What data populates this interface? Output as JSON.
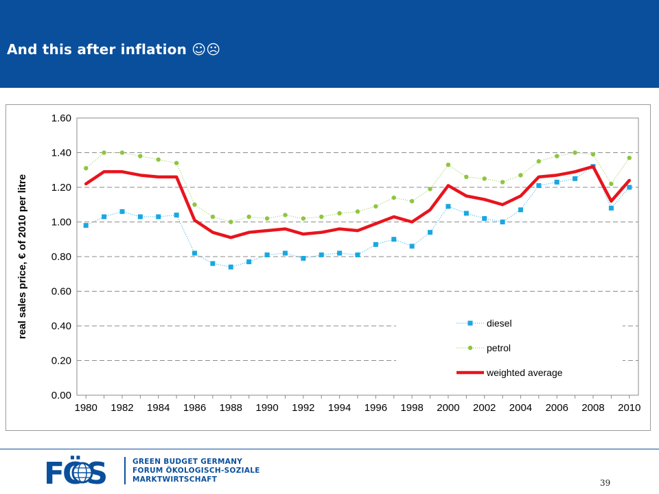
{
  "slide": {
    "title": "And this after inflation",
    "emoticons": "☺☹",
    "page_number": "39"
  },
  "footer": {
    "logo_text": "FÖS",
    "org_lines": [
      "GREEN BUDGET GERMANY",
      "FORUM ÖKOLOGISCH-SOZIALE",
      "MARKTWIRTSCHAFT"
    ],
    "colors": {
      "brand_blue": "#0a4f9c",
      "logo_gray": "#cfd6df"
    }
  },
  "chart_data": {
    "type": "line",
    "ylabel": "real sales price, € of 2010 per litre",
    "xlabel": "",
    "ylim": [
      0,
      1.6
    ],
    "yticks": [
      "0.00",
      "0.20",
      "0.40",
      "0.60",
      "0.80",
      "1.00",
      "1.20",
      "1.40",
      "1.60"
    ],
    "xticks": [
      "1980",
      "1982",
      "1984",
      "1986",
      "1988",
      "1990",
      "1992",
      "1994",
      "1996",
      "1998",
      "2000",
      "2002",
      "2004",
      "2006",
      "2008",
      "2010"
    ],
    "x": [
      1980,
      1981,
      1982,
      1983,
      1984,
      1985,
      1986,
      1987,
      1988,
      1989,
      1990,
      1991,
      1992,
      1993,
      1994,
      1995,
      1996,
      1997,
      1998,
      1999,
      2000,
      2001,
      2002,
      2003,
      2004,
      2005,
      2006,
      2007,
      2008,
      2009,
      2010
    ],
    "grid": "horizontal dashed",
    "legend_position": "bottom-right",
    "series": [
      {
        "name": "diesel",
        "color": "#1aa7e0",
        "style": "dotted with square markers",
        "values": [
          0.98,
          1.03,
          1.06,
          1.03,
          1.03,
          1.04,
          0.82,
          0.76,
          0.74,
          0.77,
          0.81,
          0.82,
          0.79,
          0.81,
          0.82,
          0.81,
          0.87,
          0.9,
          0.86,
          0.94,
          1.09,
          1.05,
          1.02,
          1.0,
          1.07,
          1.21,
          1.23,
          1.25,
          1.32,
          1.08,
          1.2
        ]
      },
      {
        "name": "petrol",
        "color": "#8dc63f",
        "style": "dotted with round markers",
        "values": [
          1.31,
          1.4,
          1.4,
          1.38,
          1.36,
          1.34,
          1.1,
          1.03,
          1.0,
          1.03,
          1.02,
          1.04,
          1.02,
          1.03,
          1.05,
          1.06,
          1.09,
          1.14,
          1.12,
          1.19,
          1.33,
          1.26,
          1.25,
          1.23,
          1.27,
          1.35,
          1.38,
          1.4,
          1.39,
          1.22,
          1.37
        ]
      },
      {
        "name": "weighted average",
        "color": "#e8141d",
        "style": "thick solid line",
        "values": [
          1.22,
          1.29,
          1.29,
          1.27,
          1.26,
          1.26,
          1.01,
          0.94,
          0.91,
          0.94,
          0.95,
          0.96,
          0.93,
          0.94,
          0.96,
          0.95,
          0.99,
          1.03,
          1.0,
          1.07,
          1.21,
          1.15,
          1.13,
          1.1,
          1.15,
          1.26,
          1.27,
          1.29,
          1.32,
          1.12,
          1.24
        ]
      }
    ]
  }
}
